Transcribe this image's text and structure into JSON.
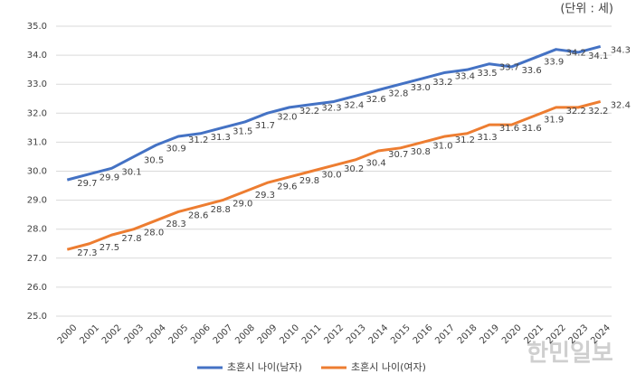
{
  "chart_data": {
    "type": "line",
    "unit_label": "(단위 : 세)",
    "watermark": "한민일보",
    "categories": [
      "2000",
      "2001",
      "2002",
      "2003",
      "2004",
      "2005",
      "2006",
      "2007",
      "2008",
      "2009",
      "2010",
      "2011",
      "2012",
      "2013",
      "2014",
      "2015",
      "2016",
      "2017",
      "2018",
      "2019",
      "2020",
      "2021",
      "2022",
      "2023",
      "2024"
    ],
    "series": [
      {
        "name": "초혼시 나이(남자)",
        "color": "#4472c4",
        "values": [
          29.7,
          29.9,
          30.1,
          30.5,
          30.9,
          31.2,
          31.3,
          31.5,
          31.7,
          32.0,
          32.2,
          32.3,
          32.4,
          32.6,
          32.8,
          33.0,
          33.2,
          33.4,
          33.5,
          33.7,
          33.6,
          33.9,
          34.2,
          34.1,
          34.3
        ],
        "value_labels": [
          "29.7",
          "29.9",
          "30.1",
          "30.5",
          "30.9",
          "31.2",
          "31.3",
          "31.5",
          "31.7",
          "32.0",
          "32.2",
          "32.3",
          "32.4",
          "32.6",
          "32.8",
          "33.0",
          "33.2",
          "33.4",
          "33.5",
          "33.7",
          "33.6",
          "33.9",
          "34.2",
          "34.1",
          "34.3"
        ]
      },
      {
        "name": "초혼시 나이(여자)",
        "color": "#ed7d31",
        "values": [
          27.3,
          27.5,
          27.8,
          28.0,
          28.3,
          28.6,
          28.8,
          29.0,
          29.3,
          29.6,
          29.8,
          30.0,
          30.2,
          30.4,
          30.7,
          30.8,
          31.0,
          31.2,
          31.3,
          31.6,
          31.6,
          31.9,
          32.2,
          32.2,
          32.4
        ],
        "value_labels": [
          "27.3",
          "27.5",
          "27.8",
          "28.0",
          "28.3",
          "28.6",
          "28.8",
          "29.0",
          "29.3",
          "29.6",
          "29.8",
          "30.0",
          "30.2",
          "30.4",
          "30.7",
          "30.8",
          "31.0",
          "31.2",
          "31.3",
          "31.6",
          "31.6",
          "31.9",
          "32.2",
          "32.2",
          "32.4"
        ]
      }
    ],
    "ylim": [
      25,
      35
    ],
    "yticks": [
      {
        "value": 25,
        "label": "25.0"
      },
      {
        "value": 26,
        "label": "26.0"
      },
      {
        "value": 27,
        "label": "27.0"
      },
      {
        "value": 28,
        "label": "28.0"
      },
      {
        "value": 29,
        "label": "29.0"
      },
      {
        "value": 30,
        "label": "30.0"
      },
      {
        "value": 31,
        "label": "31.0"
      },
      {
        "value": 32,
        "label": "32.0"
      },
      {
        "value": 33,
        "label": "33.0"
      },
      {
        "value": 34,
        "label": "34.0"
      },
      {
        "value": 35,
        "label": "35.0"
      }
    ],
    "grid": true
  }
}
